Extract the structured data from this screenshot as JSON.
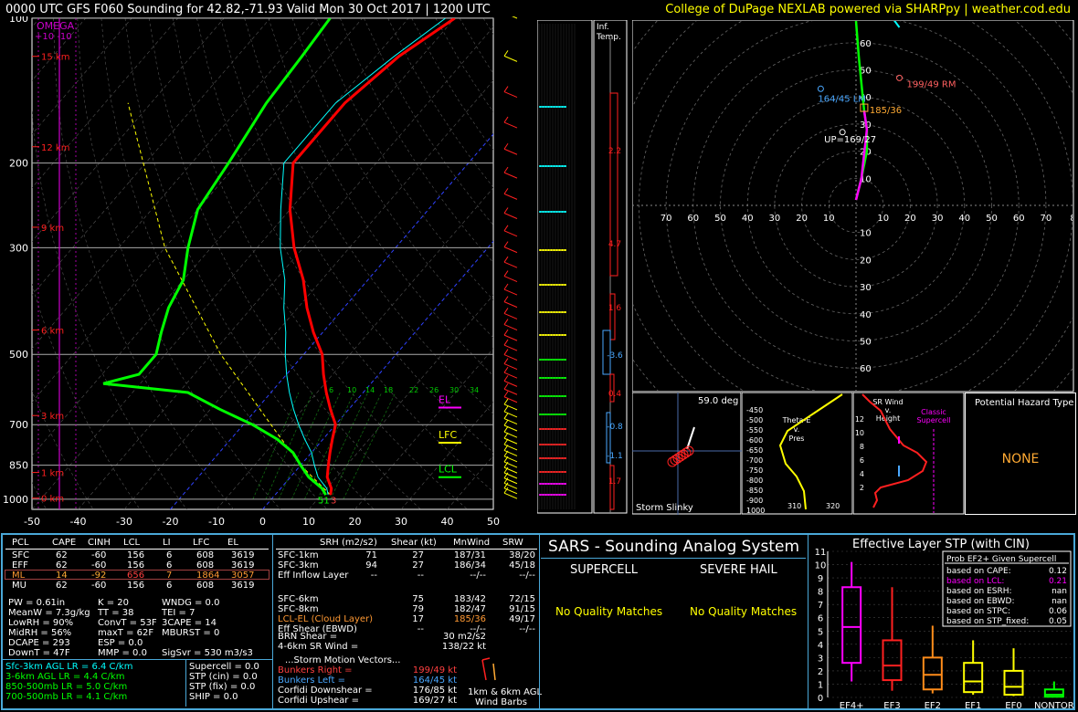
{
  "header": {
    "title": "0000 UTC GFS F060 Sounding for 42.82,-71.93 Valid  Mon 30 Oct 2017 | 1200 UTC",
    "credit": "College of DuPage NEXLAB powered via SHARPpy | weather.cod.edu"
  },
  "colors": {
    "temp": "#ff0000",
    "dewpoint": "#00ff00",
    "wetbulb": "#00ffff",
    "omega": "#cc00cc",
    "accent": "#ffff00",
    "frame": "#4aa8d8"
  },
  "skewt": {
    "pressure_labels": [
      "100",
      "200",
      "300",
      "500",
      "700",
      "850",
      "1000"
    ],
    "temp_labels": [
      "-50",
      "-40",
      "-30",
      "-20",
      "-10",
      "0",
      "10",
      "20",
      "30",
      "40",
      "50"
    ],
    "height_labels": [
      "15 km",
      "12 km",
      "9 km",
      "6 km",
      "3 km",
      "1 km",
      "0 km"
    ],
    "omega_title": "OMEGA",
    "omega_scale": "+10    -10",
    "level_labels": {
      "el": "EL",
      "lfc": "LFC",
      "lcl": "LCL"
    },
    "sfc_temp": "51",
    "sfc_dew": "3",
    "mixing_ratio_labels": [
      "6",
      "10",
      "14",
      "18",
      "22",
      "26",
      "30",
      "34"
    ]
  },
  "chart_data": [
    {
      "type": "line",
      "title": "0000 UTC GFS F060 Sounding for 42.82,-71.93 Valid  Mon 30 Oct 2017 | 1200 UTC",
      "xlabel": "",
      "ylabel": "",
      "y_scale": "log-pressure",
      "ylim": [
        1050,
        100
      ],
      "xlim": [
        -50,
        50
      ],
      "series": [
        {
          "pressure": [
            980,
            950,
            900,
            850,
            800,
            750,
            700,
            650,
            600,
            550,
            500,
            450,
            400,
            350,
            300,
            250,
            200,
            150,
            120,
            100
          ],
          "values": [
            12,
            11,
            8,
            6,
            4,
            2,
            0,
            -4,
            -8,
            -12,
            -16,
            -22,
            -28,
            -34,
            -42,
            -50,
            -58,
            -58,
            -55,
            -50
          ]
        },
        {
          "pressure": [
            980,
            950,
            900,
            850,
            800,
            750,
            700,
            650,
            600,
            575,
            550,
            500,
            450,
            400,
            350,
            300,
            250,
            200,
            150,
            120,
            100
          ],
          "values": [
            11,
            9,
            4,
            0,
            -4,
            -10,
            -18,
            -28,
            -38,
            -58,
            -52,
            -52,
            -55,
            -58,
            -60,
            -65,
            -70,
            -72,
            -75,
            -76,
            -77
          ]
        },
        {
          "pressure": [
            980,
            950,
            900,
            850,
            800,
            750,
            700,
            650,
            600,
            550,
            500,
            450,
            400,
            350,
            300,
            250,
            200,
            150,
            120,
            100
          ],
          "values": [
            11.5,
            10,
            6,
            3,
            0,
            -4,
            -8,
            -12,
            -16,
            -20,
            -24,
            -28,
            -33,
            -38,
            -45,
            -52,
            -60,
            -60,
            -56,
            -52
          ]
        }
      ]
    },
    {
      "type": "scatter",
      "title": "",
      "xlabel": "",
      "ylabel": "",
      "xlim": [
        -80,
        80
      ],
      "ylim": [
        -70,
        70
      ],
      "x_tick_labels": [
        "70",
        "60",
        "50",
        "40",
        "30",
        "20",
        "10",
        "10",
        "20",
        "30",
        "40",
        "50",
        "60",
        "70",
        "8"
      ],
      "y_tick_labels": [
        "60",
        "50",
        "40",
        "30",
        "20",
        "10",
        "10",
        "20",
        "30",
        "40",
        "50",
        "60"
      ],
      "series": [
        {
          "x": [
            0,
            1,
            2,
            3,
            4,
            4,
            2,
            0
          ],
          "y": [
            -68,
            -55,
            -45,
            -35,
            -28,
            -20,
            -10,
            -2
          ]
        }
      ],
      "points": [
        {
          "label": "199/49 RM",
          "x": 16,
          "y": 47
        },
        {
          "label": "164/45 LM",
          "x": -13,
          "y": 43
        },
        {
          "label": "185/36",
          "x": 3,
          "y": 36
        },
        {
          "label": "UP=169/27",
          "x": -5,
          "y": 27
        }
      ]
    },
    {
      "type": "bar",
      "title": "Effective Layer STP (with CIN)",
      "xlabel": "",
      "ylabel": "",
      "categories": [
        "EF4+",
        "EF3",
        "EF2",
        "EF1",
        "EF0",
        "NONTOR"
      ],
      "ylim": [
        0,
        11
      ],
      "y_tick_labels": [
        "0",
        "1",
        "2",
        "3",
        "4",
        "5",
        "6",
        "7",
        "8",
        "9",
        "10",
        "11"
      ],
      "series": [
        {
          "name": "p10",
          "values": [
            1.2,
            0.5,
            0.3,
            0.2,
            0.1,
            0
          ]
        },
        {
          "name": "p25",
          "values": [
            2.6,
            1.3,
            0.6,
            0.4,
            0.2,
            0.05
          ]
        },
        {
          "name": "p50",
          "values": [
            5.3,
            2.4,
            1.7,
            1.2,
            0.8,
            0.2
          ]
        },
        {
          "name": "p75",
          "values": [
            8.3,
            4.3,
            3.0,
            2.6,
            2.0,
            0.6
          ]
        },
        {
          "name": "p90",
          "values": [
            10.2,
            8.3,
            5.4,
            4.3,
            3.7,
            1.2
          ]
        }
      ]
    }
  ],
  "infTemp": {
    "label": "Inf.\nTemp.",
    "values": [
      "2.2",
      "4.7",
      "1.6",
      "-3.6",
      "0.4",
      "-0.8",
      "-1.1",
      "1.7"
    ]
  },
  "hodo_small": {
    "deg": "59.0 deg",
    "label": "Storm Slinky"
  },
  "theta_panel": {
    "title": "Theta-E\nv.\nPres",
    "p": [
      "-450",
      "-500",
      "-550",
      "-600",
      "-650",
      "-700",
      "-750",
      "-800",
      "-850",
      "-900",
      "1000"
    ],
    "x": [
      "310",
      "320"
    ]
  },
  "srwind_panel": {
    "title": "SR Wind\nv.\nHeight",
    "classic": "Classic\nSupercell",
    "ticks": [
      "12",
      "10",
      "8",
      "6",
      "4",
      "2"
    ]
  },
  "hazard": {
    "title": "Potential Hazard Type",
    "value": "NONE"
  },
  "parcel_table": {
    "headers": [
      "PCL",
      "CAPE",
      "CINH",
      "LCL",
      "LI",
      "LFC",
      "EL"
    ],
    "rows": [
      [
        "SFC",
        "62",
        "-60",
        "156",
        "6",
        "608",
        "3619"
      ],
      [
        "EFF",
        "62",
        "-60",
        "156",
        "6",
        "608",
        "3619"
      ],
      [
        "ML",
        "14",
        "-92",
        "656",
        "7",
        "1864",
        "3057"
      ],
      [
        "MU",
        "62",
        "-60",
        "156",
        "6",
        "608",
        "3619"
      ]
    ]
  },
  "indices": [
    [
      "PW = 0.61in",
      "K = 20",
      "WNDG = 0.0"
    ],
    [
      "MeanW = 7.3g/kg",
      "TT = 38",
      "TEI = 7"
    ],
    [
      "LowRH = 90%",
      "ConvT = 53F",
      "3CAPE = 14"
    ],
    [
      "MidRH = 56%",
      "maxT = 62F",
      "MBURST = 0"
    ],
    [
      "DCAPE = 293",
      "ESP = 0.0",
      ""
    ],
    [
      "DownT = 47F",
      "MMP = 0.0",
      "SigSvr = 530 m3/s3"
    ]
  ],
  "lapse": [
    {
      "text": "Sfc-3km AGL LR = 6.4 C/km",
      "color": "#00ffff"
    },
    {
      "text": "3-6km AGL LR = 4.4 C/km",
      "color": "#00ff00"
    },
    {
      "text": "850-500mb LR = 5.0 C/km",
      "color": "#00ff00"
    },
    {
      "text": "700-500mb LR = 4.1 C/km",
      "color": "#00ff00"
    }
  ],
  "composite": [
    "Supercell = 0.0",
    "STP (cin) = 0.0",
    "STP (fix) = 0.0",
    "SHIP = 0.0"
  ],
  "kinematics": {
    "headers": [
      "",
      "SRH (m2/s2)",
      "Shear (kt)",
      "MnWind",
      "SRW"
    ],
    "rows": [
      [
        "SFC-1km",
        "71",
        "27",
        "187/31",
        "38/20"
      ],
      [
        "SFC-3km",
        "94",
        "27",
        "186/34",
        "45/18"
      ],
      [
        "Eff Inflow Layer",
        "--",
        "--",
        "--/--",
        "--/--"
      ],
      [
        "",
        "",
        " ",
        "",
        ""
      ],
      [
        "SFC-6km",
        "75",
        "183/42",
        "72/15",
        ""
      ],
      [
        "SFC-8km",
        "79",
        "182/47",
        "91/15",
        ""
      ],
      [
        "LCL-EL (Cloud Layer)",
        "17",
        "185/36",
        "49/17",
        ""
      ],
      [
        "Eff Shear (EBWD)",
        "--",
        "--/--",
        "--/--",
        ""
      ]
    ],
    "brn": [
      "BRN Shear =",
      "30 m2/s2"
    ],
    "sr46": [
      "4-6km SR Wind =",
      "138/22 kt"
    ],
    "storm_title": "...Storm Motion Vectors...",
    "storm": [
      [
        "Bunkers Right =",
        "199/49 kt",
        "#ff4040"
      ],
      [
        "Bunkers Left =",
        "164/45 kt",
        "#4aa8ff"
      ],
      [
        "Corfidi Downshear =",
        "176/85 kt",
        "#ffffff"
      ],
      [
        "Corfidi Upshear =",
        "169/27 kt",
        "#ffffff"
      ]
    ],
    "barbs_label": "1km & 6km AGL\nWind Barbs"
  },
  "sars": {
    "title": "SARS - Sounding Analog System",
    "supercell": "SUPERCELL",
    "hail": "SEVERE HAIL",
    "sup_match": "No Quality Matches",
    "hail_match": "No Quality Matches"
  },
  "stp_legend": {
    "title": "Prob EF2+ Given Supercell",
    "rows": [
      [
        "based on CAPE:",
        "0.12",
        "#ffffff"
      ],
      [
        "based on LCL:",
        "0.21",
        "#ff00ff"
      ],
      [
        "based on ESRH:",
        "nan",
        "#ffffff"
      ],
      [
        "based on EBWD:",
        "nan",
        "#ffffff"
      ],
      [
        "based on STPC:",
        "0.06",
        "#ffffff"
      ],
      [
        "based on STP_fixed:",
        "0.05",
        "#ffffff"
      ]
    ]
  }
}
